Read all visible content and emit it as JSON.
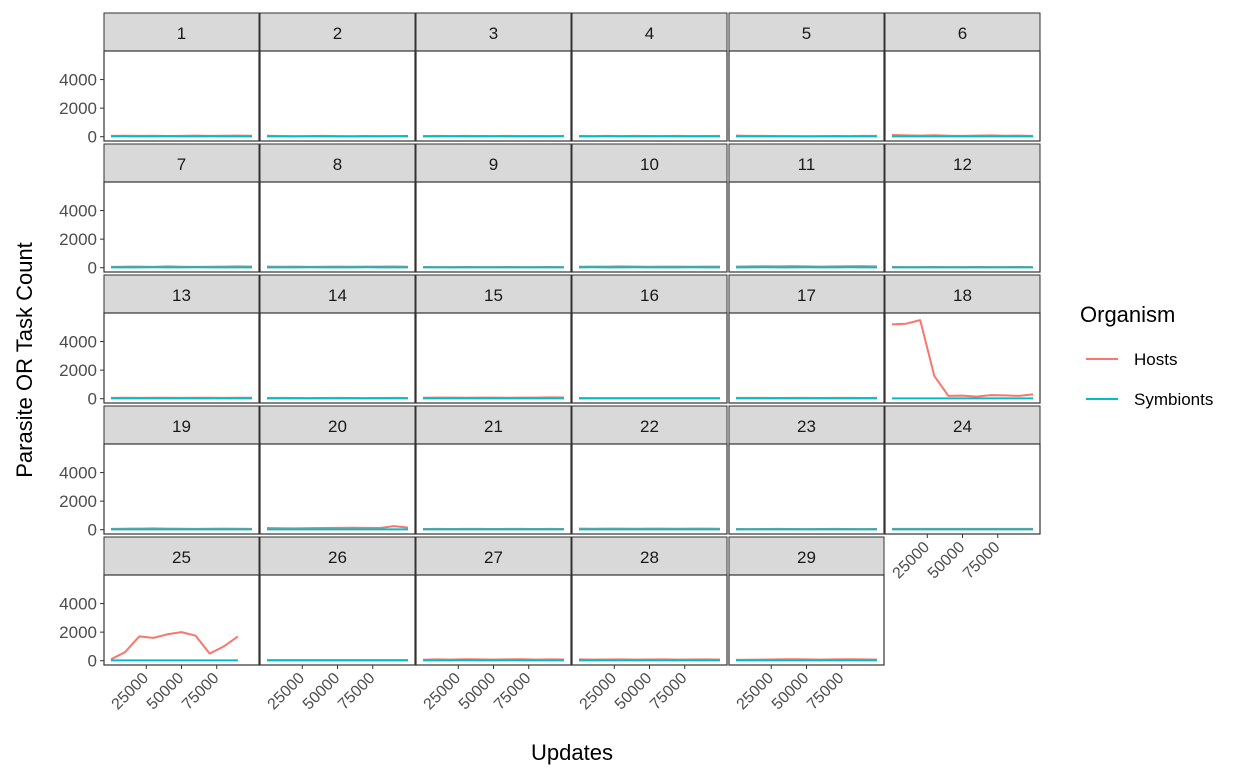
{
  "chart_data": {
    "type": "line",
    "facet_by": "replicate",
    "facets": [
      "1",
      "2",
      "3",
      "4",
      "5",
      "6",
      "7",
      "8",
      "9",
      "10",
      "11",
      "12",
      "13",
      "14",
      "15",
      "16",
      "17",
      "18",
      "19",
      "20",
      "21",
      "22",
      "23",
      "24",
      "25",
      "26",
      "27",
      "28",
      "29"
    ],
    "xlabel": "Updates",
    "ylabel": "Parasite OR Task Count",
    "x": [
      0,
      10000,
      20000,
      30000,
      40000,
      50000,
      60000,
      70000,
      80000,
      90000,
      100000
    ],
    "x_ticks": [
      25000,
      50000,
      75000
    ],
    "x_tick_labels": [
      "25000",
      "50000",
      "75000"
    ],
    "xlim": [
      -5000,
      105000
    ],
    "y_ticks": [
      0,
      2000,
      4000
    ],
    "y_tick_labels": [
      "0",
      "2000",
      "4000"
    ],
    "ylim": [
      -300,
      6000
    ],
    "legend": {
      "title": "Organism",
      "position": "right",
      "entries": [
        {
          "name": "Hosts",
          "color": "#F8766D"
        },
        {
          "name": "Symbionts",
          "color": "#00BFC4"
        }
      ]
    },
    "grid": false,
    "series_by_facet": {
      "1": {
        "Hosts": [
          60,
          70,
          55,
          65,
          50,
          60,
          75,
          55,
          70,
          80,
          65
        ],
        "Symbionts": [
          20,
          30,
          25,
          20,
          30,
          25,
          20,
          30,
          25,
          20,
          25
        ]
      },
      "2": {
        "Hosts": [
          70,
          50,
          30,
          45,
          60,
          40,
          35,
          50,
          45,
          40,
          55
        ],
        "Symbionts": [
          20,
          25,
          20,
          30,
          20,
          25,
          20,
          25,
          20,
          30,
          20
        ]
      },
      "3": {
        "Hosts": [
          40,
          55,
          45,
          60,
          50,
          45,
          55,
          40,
          50,
          45,
          55
        ],
        "Symbionts": [
          20,
          25,
          30,
          20,
          25,
          30,
          20,
          25,
          20,
          25,
          30
        ]
      },
      "4": {
        "Hosts": [
          50,
          45,
          55,
          40,
          60,
          50,
          45,
          55,
          40,
          50,
          60
        ],
        "Symbionts": [
          25,
          20,
          30,
          25,
          20,
          25,
          30,
          20,
          25,
          20,
          25
        ]
      },
      "5": {
        "Hosts": [
          80,
          60,
          55,
          40,
          45,
          35,
          40,
          50,
          45,
          60,
          55
        ],
        "Symbionts": [
          20,
          25,
          20,
          25,
          20,
          25,
          20,
          25,
          20,
          25,
          20
        ]
      },
      "6": {
        "Hosts": [
          120,
          90,
          80,
          100,
          70,
          60,
          80,
          90,
          70,
          80,
          60
        ],
        "Symbionts": [
          20,
          25,
          20,
          25,
          20,
          25,
          20,
          25,
          20,
          25,
          20
        ]
      },
      "7": {
        "Hosts": [
          60,
          70,
          80,
          60,
          90,
          70,
          60,
          70,
          80,
          90,
          75
        ],
        "Symbionts": [
          20,
          25,
          20,
          30,
          20,
          25,
          30,
          20,
          25,
          20,
          25
        ]
      },
      "8": {
        "Hosts": [
          80,
          70,
          75,
          60,
          70,
          80,
          70,
          75,
          80,
          85,
          70
        ],
        "Symbionts": [
          25,
          20,
          25,
          30,
          20,
          25,
          20,
          30,
          25,
          20,
          25
        ]
      },
      "9": {
        "Hosts": [
          50,
          40,
          45,
          50,
          40,
          45,
          50,
          45,
          40,
          50,
          45
        ],
        "Symbionts": [
          20,
          25,
          20,
          25,
          20,
          25,
          20,
          25,
          20,
          25,
          20
        ]
      },
      "10": {
        "Hosts": [
          70,
          80,
          75,
          90,
          80,
          70,
          75,
          80,
          70,
          80,
          75
        ],
        "Symbionts": [
          25,
          30,
          25,
          20,
          30,
          25,
          20,
          25,
          30,
          25,
          20
        ]
      },
      "11": {
        "Hosts": [
          80,
          90,
          100,
          90,
          110,
          90,
          80,
          90,
          100,
          110,
          90
        ],
        "Symbionts": [
          20,
          25,
          30,
          20,
          25,
          30,
          20,
          25,
          30,
          20,
          25
        ]
      },
      "12": {
        "Hosts": [
          50,
          45,
          40,
          50,
          45,
          40,
          50,
          45,
          40,
          50,
          45
        ],
        "Symbionts": [
          20,
          20,
          25,
          20,
          20,
          25,
          20,
          20,
          25,
          20,
          20
        ]
      },
      "13": {
        "Hosts": [
          60,
          70,
          60,
          65,
          70,
          60,
          65,
          70,
          60,
          65,
          70
        ],
        "Symbionts": [
          25,
          20,
          25,
          20,
          25,
          20,
          25,
          20,
          25,
          20,
          25
        ]
      },
      "14": {
        "Hosts": [
          50,
          55,
          50,
          45,
          50,
          55,
          50,
          45,
          50,
          55,
          50
        ],
        "Symbionts": [
          20,
          25,
          20,
          25,
          20,
          25,
          20,
          25,
          20,
          25,
          20
        ]
      },
      "15": {
        "Hosts": [
          70,
          80,
          75,
          70,
          80,
          75,
          70,
          80,
          75,
          90,
          85
        ],
        "Symbionts": [
          25,
          20,
          25,
          20,
          25,
          20,
          25,
          20,
          25,
          20,
          25
        ]
      },
      "16": {
        "Hosts": [
          40,
          45,
          40,
          45,
          40,
          45,
          40,
          45,
          40,
          45,
          40
        ],
        "Symbionts": [
          20,
          20,
          20,
          20,
          20,
          20,
          20,
          20,
          20,
          20,
          20
        ]
      },
      "17": {
        "Hosts": [
          60,
          55,
          60,
          50,
          55,
          60,
          50,
          55,
          60,
          50,
          55
        ],
        "Symbionts": [
          20,
          25,
          20,
          25,
          20,
          25,
          20,
          25,
          20,
          25,
          20
        ]
      },
      "18": {
        "Hosts": [
          5200,
          5250,
          5500,
          1600,
          200,
          220,
          150,
          250,
          230,
          200,
          300
        ],
        "Symbionts": [
          20,
          20,
          20,
          20,
          20,
          20,
          20,
          20,
          20,
          20,
          20
        ]
      },
      "19": {
        "Hosts": [
          60,
          70,
          80,
          90,
          80,
          70,
          60,
          70,
          80,
          70,
          60
        ],
        "Symbionts": [
          25,
          20,
          25,
          20,
          25,
          20,
          25,
          20,
          25,
          20,
          25
        ]
      },
      "20": {
        "Hosts": [
          120,
          100,
          90,
          110,
          120,
          130,
          140,
          130,
          120,
          250,
          150
        ],
        "Symbionts": [
          20,
          25,
          20,
          25,
          20,
          25,
          20,
          25,
          20,
          25,
          20
        ]
      },
      "21": {
        "Hosts": [
          50,
          55,
          50,
          60,
          55,
          50,
          55,
          60,
          50,
          55,
          50
        ],
        "Symbionts": [
          20,
          20,
          25,
          20,
          20,
          25,
          20,
          20,
          25,
          20,
          20
        ]
      },
      "22": {
        "Hosts": [
          80,
          70,
          75,
          80,
          70,
          75,
          80,
          70,
          75,
          80,
          70
        ],
        "Symbionts": [
          25,
          20,
          25,
          20,
          25,
          20,
          25,
          20,
          25,
          20,
          25
        ]
      },
      "23": {
        "Hosts": [
          50,
          45,
          50,
          55,
          50,
          45,
          50,
          55,
          50,
          45,
          50
        ],
        "Symbionts": [
          20,
          20,
          20,
          20,
          20,
          20,
          20,
          20,
          20,
          20,
          20
        ]
      },
      "24": {
        "Hosts": [
          60,
          55,
          60,
          55,
          60,
          55,
          60,
          55,
          60,
          55,
          60
        ],
        "Symbionts": [
          20,
          20,
          20,
          20,
          20,
          20,
          20,
          20,
          20,
          20,
          20
        ]
      },
      "25": {
        "Hosts": [
          100,
          600,
          1700,
          1600,
          1850,
          2000,
          1750,
          500,
          1000,
          1700
        ],
        "Symbionts": [
          20,
          20,
          20,
          20,
          20,
          20,
          20,
          20,
          20,
          20
        ],
        "x": [
          0,
          10000,
          20000,
          30000,
          40000,
          50000,
          60000,
          70000,
          80000,
          90000
        ]
      },
      "26": {
        "Hosts": [
          40,
          45,
          40,
          45,
          40,
          45,
          40,
          45,
          40,
          45,
          40
        ],
        "Symbionts": [
          20,
          20,
          20,
          20,
          20,
          20,
          20,
          20,
          20,
          20,
          20
        ]
      },
      "27": {
        "Hosts": [
          70,
          90,
          80,
          100,
          90,
          80,
          90,
          100,
          80,
          90,
          85
        ],
        "Symbionts": [
          25,
          20,
          25,
          30,
          20,
          25,
          30,
          20,
          25,
          20,
          25
        ]
      },
      "28": {
        "Hosts": [
          90,
          80,
          85,
          90,
          80,
          85,
          90,
          80,
          85,
          90,
          80
        ],
        "Symbionts": [
          25,
          20,
          25,
          20,
          25,
          20,
          25,
          20,
          25,
          20,
          25
        ]
      },
      "29": {
        "Hosts": [
          60,
          70,
          80,
          90,
          100,
          90,
          80,
          90,
          100,
          90,
          80
        ],
        "Symbionts": [
          20,
          25,
          20,
          25,
          20,
          25,
          20,
          25,
          20,
          25,
          20
        ]
      }
    }
  }
}
